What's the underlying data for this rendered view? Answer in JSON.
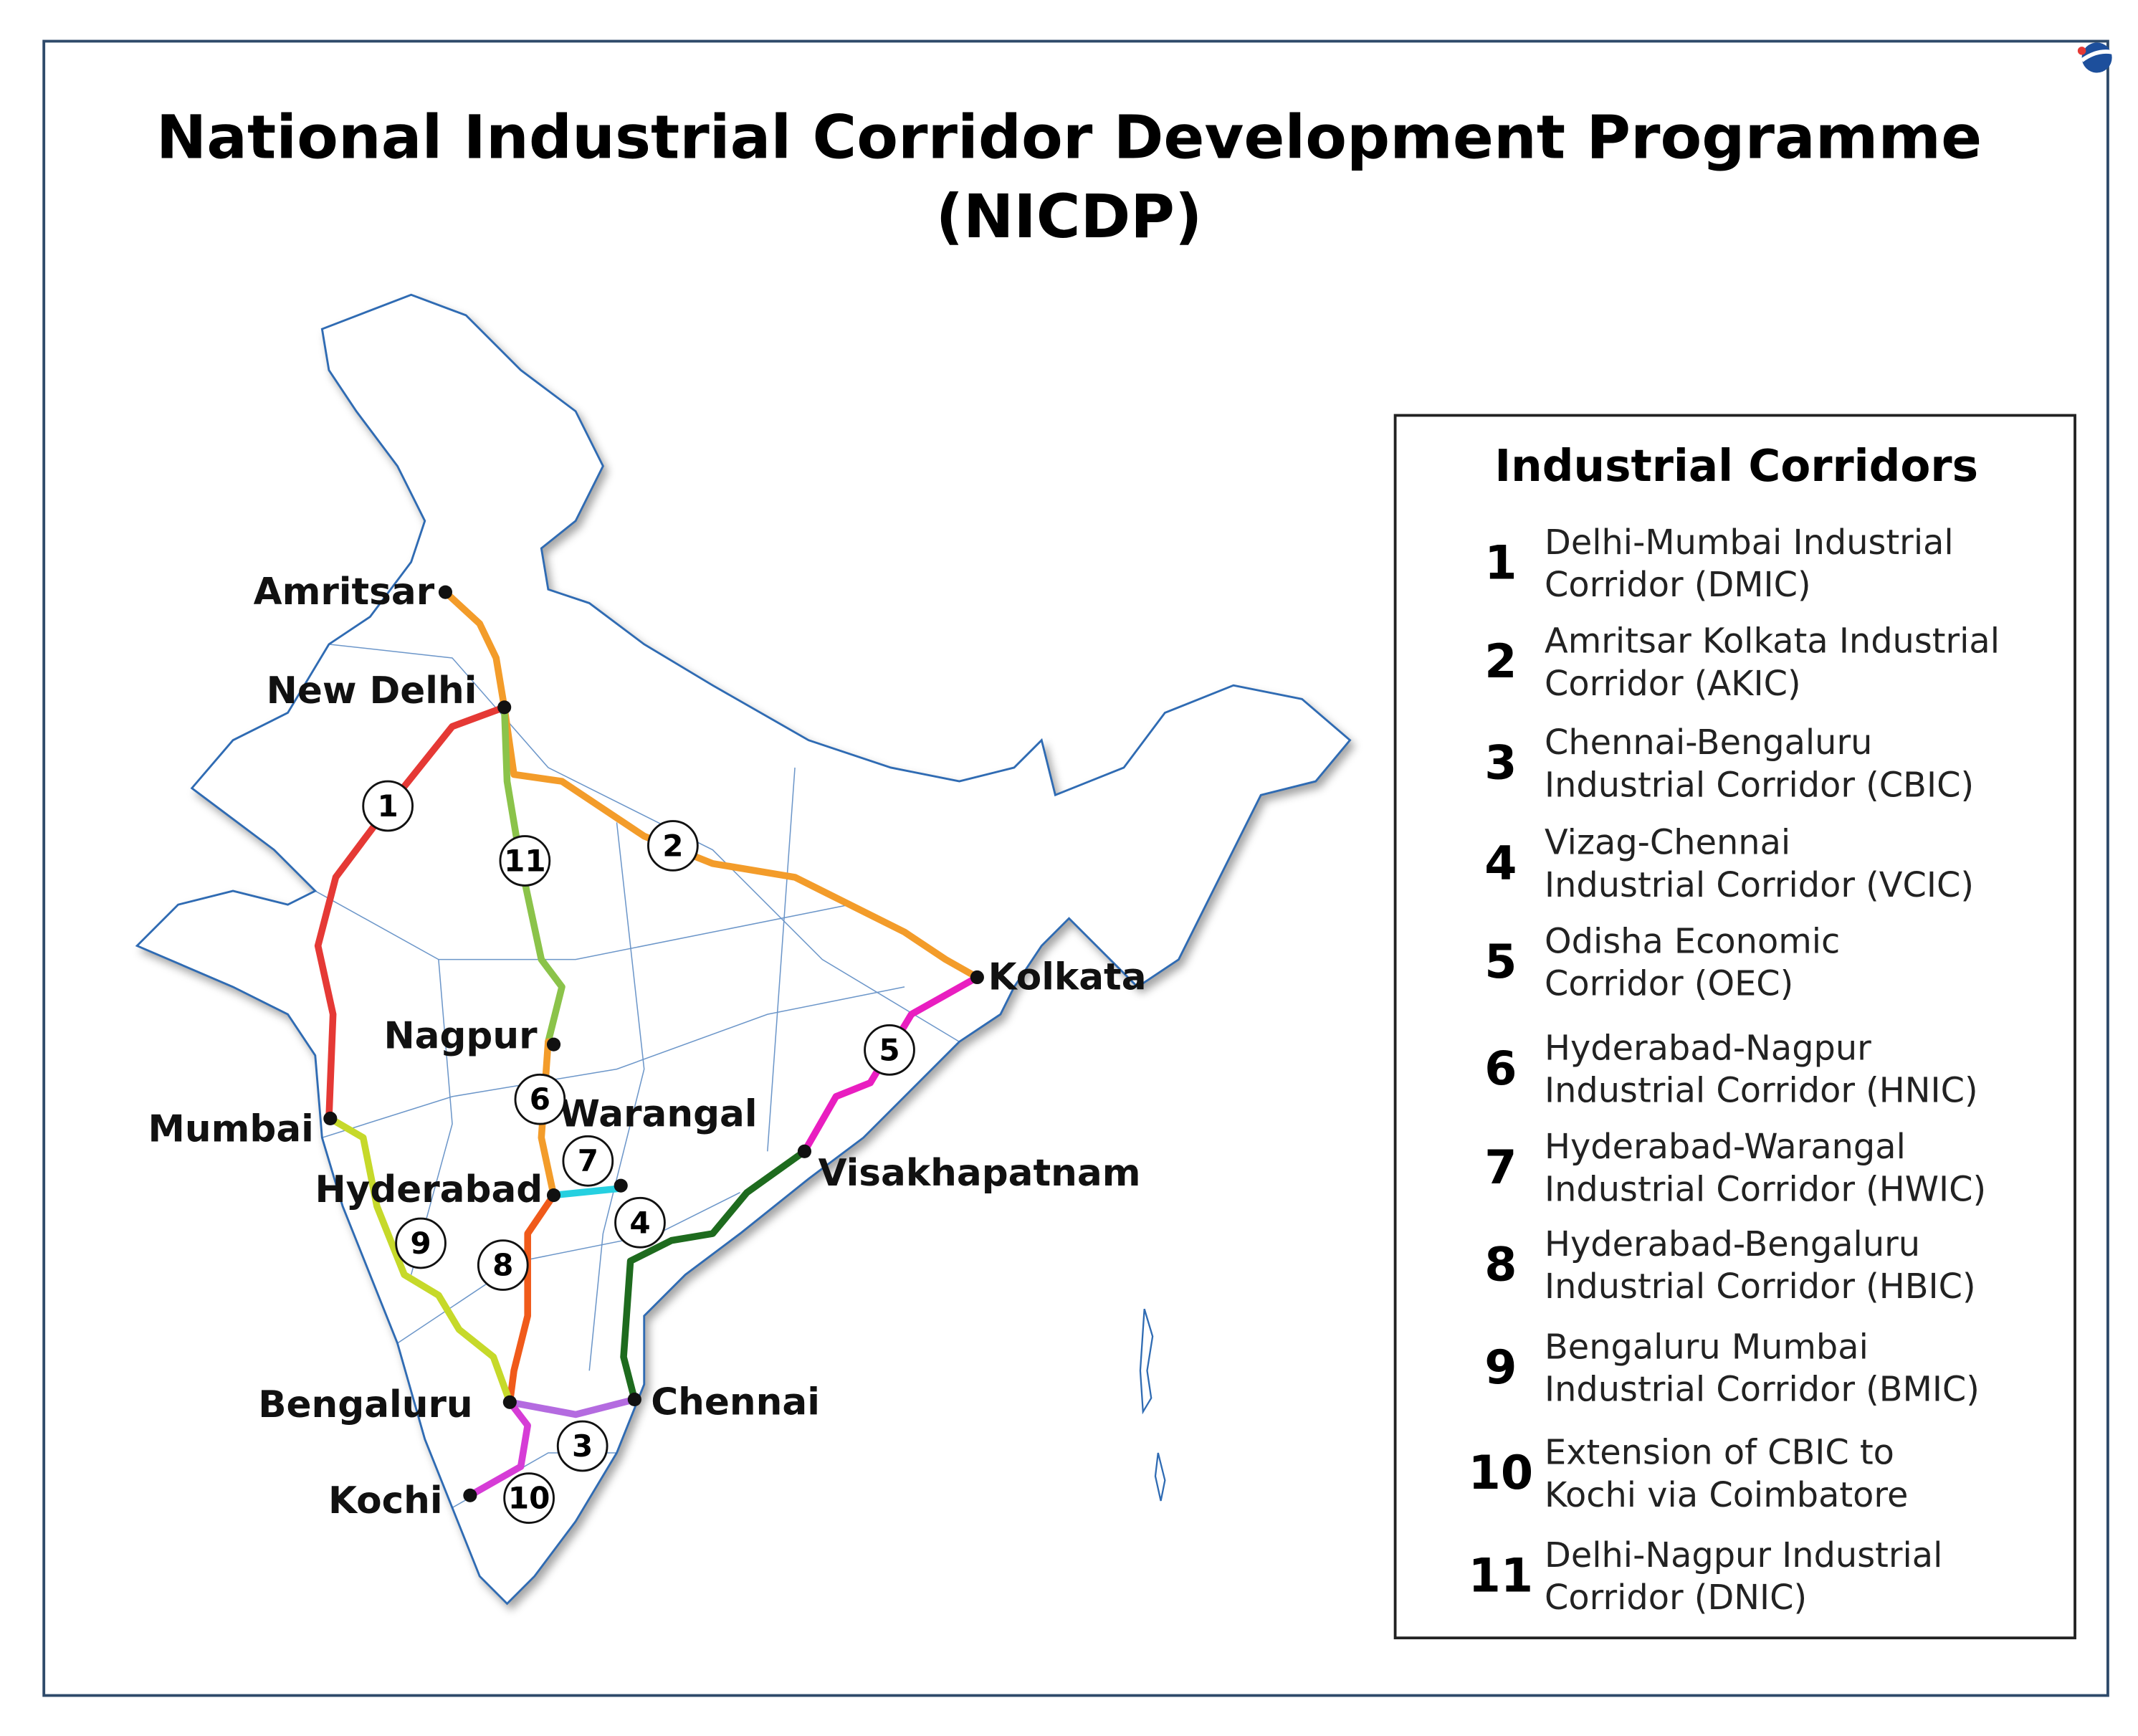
{
  "title": {
    "lines": [
      "National Industrial Corridor Development Programme",
      "(NICDP)"
    ]
  },
  "legend": {
    "title": "Industrial Corridors",
    "items": [
      {
        "number": "1",
        "lines": [
          "Delhi-Mumbai Industrial",
          "Corridor (DMIC)"
        ]
      },
      {
        "number": "2",
        "lines": [
          "Amritsar Kolkata Industrial",
          "Corridor (AKIC)"
        ]
      },
      {
        "number": "3",
        "lines": [
          "Chennai-Bengaluru",
          "Industrial Corridor (CBIC)"
        ]
      },
      {
        "number": "4",
        "lines": [
          "Vizag-Chennai",
          "Industrial Corridor (VCIC)"
        ]
      },
      {
        "number": "5",
        "lines": [
          "Odisha Economic",
          "Corridor (OEC)"
        ]
      },
      {
        "number": "6",
        "lines": [
          "Hyderabad-Nagpur",
          "Industrial Corridor (HNIC)"
        ]
      },
      {
        "number": "7",
        "lines": [
          "Hyderabad-Warangal",
          "Industrial Corridor (HWIC)"
        ]
      },
      {
        "number": "8",
        "lines": [
          "Hyderabad-Bengaluru",
          "Industrial Corridor (HBIC)"
        ]
      },
      {
        "number": "9",
        "lines": [
          "Bengaluru Mumbai",
          "Industrial Corridor (BMIC)"
        ]
      },
      {
        "number": "10",
        "lines": [
          "Extension of CBIC to",
          "Kochi via Coimbatore"
        ]
      },
      {
        "number": "11",
        "lines": [
          "Delhi-Nagpur Industrial",
          "Corridor (DNIC)"
        ]
      }
    ]
  },
  "cities": [
    "Amritsar",
    "New Delhi",
    "Kolkata",
    "Nagpur",
    "Mumbai",
    "Warangal",
    "Hyderabad",
    "Visakhapatnam",
    "Bengaluru",
    "Chennai",
    "Kochi"
  ]
}
